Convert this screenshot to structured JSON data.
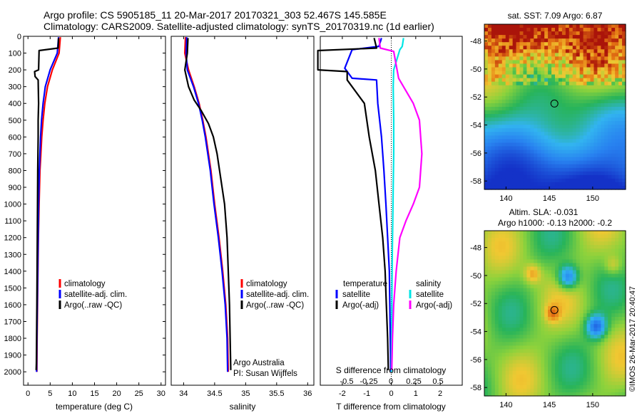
{
  "header": {
    "title_line1": "Argo profile: CS 5905185_11 20-Mar-2017 20170321_303 52.467S 145.585E",
    "title_line2": "Climatology: CARS2009. Satellite-adjusted climatology: synTS_20170319.nc (1d earlier)"
  },
  "colors": {
    "climatology": "#ff0000",
    "satellite": "#0000ff",
    "argo": "#000000",
    "sal_satellite": "#00e5e5",
    "sal_argo": "#ff00ff",
    "frame": "#000000"
  },
  "chart_data": [
    {
      "type": "line",
      "name": "temperature-profile",
      "xlabel": "temperature (deg C)",
      "ylabel": "",
      "xlim": [
        -1,
        31
      ],
      "ylim": [
        2080,
        0
      ],
      "xticks": [
        "0",
        "5",
        "10",
        "15",
        "20",
        "25",
        "30"
      ],
      "yticks": [
        "0",
        "100",
        "200",
        "300",
        "400",
        "500",
        "600",
        "700",
        "800",
        "900",
        "1000",
        "1100",
        "1200",
        "1300",
        "1400",
        "1500",
        "1600",
        "1700",
        "1800",
        "1900",
        "2000"
      ],
      "legend": [
        "climatology",
        "satellite-adj. clim.",
        "Argo(..raw -QC)"
      ],
      "legend_position": "center-right",
      "series": [
        {
          "name": "climatology",
          "color": "#ff0000",
          "x": [
            7.3,
            7.0,
            5.5,
            4.4,
            3.8,
            3.4,
            3.1,
            2.9,
            2.7,
            2.5,
            2.35,
            2.25,
            2.15,
            2.05,
            2.0
          ],
          "y": [
            5,
            100,
            200,
            300,
            400,
            500,
            600,
            700,
            800,
            1000,
            1200,
            1400,
            1600,
            1800,
            2000
          ]
        },
        {
          "name": "satellite-adj. clim.",
          "color": "#0000ff",
          "x": [
            6.9,
            6.6,
            5.0,
            3.9,
            3.4,
            3.05,
            2.85,
            2.7,
            2.55,
            2.4,
            2.3,
            2.2,
            2.1,
            2.0,
            1.95
          ],
          "y": [
            5,
            100,
            200,
            300,
            400,
            500,
            600,
            700,
            800,
            1000,
            1200,
            1400,
            1600,
            1800,
            2000
          ]
        },
        {
          "name": "Argo(..raw -QC)",
          "color": "#000000",
          "x": [
            6.9,
            6.8,
            2.5,
            2.4,
            1.5,
            1.6,
            2.3,
            2.4,
            2.3,
            2.3,
            2.2,
            2.15,
            2.1,
            2.05,
            2.0,
            1.95,
            1.9,
            1.85
          ],
          "y": [
            10,
            70,
            85,
            200,
            210,
            240,
            260,
            400,
            500,
            600,
            800,
            1000,
            1200,
            1400,
            1600,
            1800,
            1950,
            1990
          ]
        }
      ]
    },
    {
      "type": "line",
      "name": "salinity-profile",
      "xlabel": "salinity",
      "xlim": [
        33.8,
        36.1
      ],
      "ylim": [
        2080,
        0
      ],
      "xticks": [
        "34",
        "34.5",
        "35",
        "35.5",
        "36"
      ],
      "legend": [
        "climatology",
        "satellite-adj. clim.",
        "Argo(..raw -QC)"
      ],
      "legend_position": "center-right",
      "annotations": [
        "Argo Australia",
        "PI: Susan Wijffels"
      ],
      "series": [
        {
          "name": "climatology",
          "color": "#ff0000",
          "x": [
            34.03,
            34.02,
            34.08,
            34.17,
            34.25,
            34.31,
            34.36,
            34.4,
            34.44,
            34.5,
            34.57,
            34.63,
            34.68,
            34.71,
            34.72
          ],
          "y": [
            5,
            100,
            200,
            300,
            400,
            500,
            600,
            700,
            800,
            1000,
            1200,
            1400,
            1600,
            1800,
            2000
          ]
        },
        {
          "name": "satellite-adj. clim.",
          "color": "#0000ff",
          "x": [
            34.05,
            34.04,
            34.06,
            34.16,
            34.24,
            34.3,
            34.35,
            34.39,
            34.43,
            34.49,
            34.56,
            34.62,
            34.67,
            34.7,
            34.71
          ],
          "y": [
            5,
            100,
            200,
            300,
            400,
            500,
            600,
            700,
            800,
            1000,
            1200,
            1400,
            1600,
            1800,
            2000
          ]
        },
        {
          "name": "Argo(..raw -QC)",
          "color": "#000000",
          "x": [
            34.07,
            34.06,
            34.02,
            34.08,
            34.17,
            34.28,
            34.4,
            34.48,
            34.54,
            34.58,
            34.62,
            34.66,
            34.7,
            34.72,
            34.74,
            34.75,
            34.76
          ],
          "y": [
            10,
            100,
            200,
            300,
            380,
            440,
            520,
            600,
            700,
            800,
            900,
            1000,
            1200,
            1400,
            1600,
            1800,
            1990
          ]
        }
      ]
    },
    {
      "type": "line",
      "name": "difference-profile",
      "xlabel": "T difference from climatology",
      "top_axis_label": "S difference from climatology",
      "xlim": [
        -2.9,
        2.9
      ],
      "ylim": [
        2080,
        0
      ],
      "xticks": [
        "-2",
        "-1",
        "0",
        "1",
        "2"
      ],
      "top_ticks": [
        "-0.5",
        "-0.25",
        "0",
        "0.25",
        "0.5"
      ],
      "legend_headers": [
        "temperature",
        "salinity"
      ],
      "legend": [
        "satellite",
        "Argo(-adj)",
        "satellite",
        "Argo(-adj)"
      ],
      "legend_position": "center",
      "series": [
        {
          "name": "satellite",
          "group": "temperature",
          "color": "#0000ff",
          "x": [
            -0.4,
            -0.5,
            -1.6,
            -1.9,
            -1.6,
            -0.6,
            -0.55,
            -0.4,
            -0.3,
            -0.22,
            -0.15,
            -0.08,
            -0.05,
            -0.02
          ],
          "y": [
            10,
            60,
            80,
            190,
            250,
            260,
            400,
            600,
            800,
            1000,
            1200,
            1400,
            1700,
            2000
          ]
        },
        {
          "name": "Argo(-adj)",
          "group": "temperature",
          "color": "#000000",
          "x": [
            -0.7,
            -0.6,
            -3.0,
            -3.0,
            -1.8,
            -1.8,
            -1.1,
            -0.9,
            -0.65,
            -0.5,
            -0.35,
            -0.25,
            -0.2,
            -0.15,
            -0.12
          ],
          "y": [
            10,
            70,
            85,
            200,
            210,
            260,
            400,
            600,
            800,
            1000,
            1200,
            1400,
            1600,
            1800,
            1990
          ]
        },
        {
          "name": "satellite",
          "group": "salinity",
          "color": "#00e5e5",
          "x": [
            0.5,
            0.45,
            0.35,
            0.1,
            0.08,
            0.1,
            0.1,
            0.08,
            0.06,
            0.04,
            0.03,
            0.02,
            0.01
          ],
          "y": [
            10,
            60,
            80,
            200,
            300,
            500,
            700,
            900,
            1100,
            1300,
            1500,
            1700,
            2000
          ]
        },
        {
          "name": "Argo(-adj)",
          "group": "salinity",
          "color": "#ff00ff",
          "x": [
            -0.5,
            -0.45,
            0.1,
            0.3,
            0.9,
            1.15,
            1.25,
            1.15,
            0.9,
            0.6,
            0.35,
            0.2,
            0.1,
            0.05,
            0.02
          ],
          "y": [
            10,
            70,
            90,
            250,
            400,
            500,
            700,
            900,
            1000,
            1100,
            1200,
            1400,
            1600,
            1800,
            1990
          ]
        }
      ]
    },
    {
      "type": "heatmap",
      "name": "sst-map",
      "title": "sat. SST: 7.09  Argo: 6.87",
      "xlim": [
        137.5,
        153.8
      ],
      "ylim": [
        -58.6,
        -46.8
      ],
      "xticks": [
        "140",
        "145",
        "150"
      ],
      "yticks": [
        "-48",
        "-50",
        "-52",
        "-54",
        "-56",
        "-58"
      ],
      "marker": {
        "lon": 145.585,
        "lat": -52.467
      }
    },
    {
      "type": "heatmap",
      "name": "sla-map",
      "title": "Altim. SLA: -0.031",
      "subtitle": "Argo h1000: -0.13  h2000: -0.2",
      "xlim": [
        137.5,
        153.8
      ],
      "ylim": [
        -58.6,
        -46.8
      ],
      "xticks": [
        "140",
        "145",
        "150"
      ],
      "yticks": [
        "-48",
        "-50",
        "-52",
        "-54",
        "-56",
        "-58"
      ],
      "marker": {
        "lon": 145.585,
        "lat": -52.467
      },
      "sidenote": "©IMOS 26-Mar-2017 20:40:47"
    }
  ]
}
